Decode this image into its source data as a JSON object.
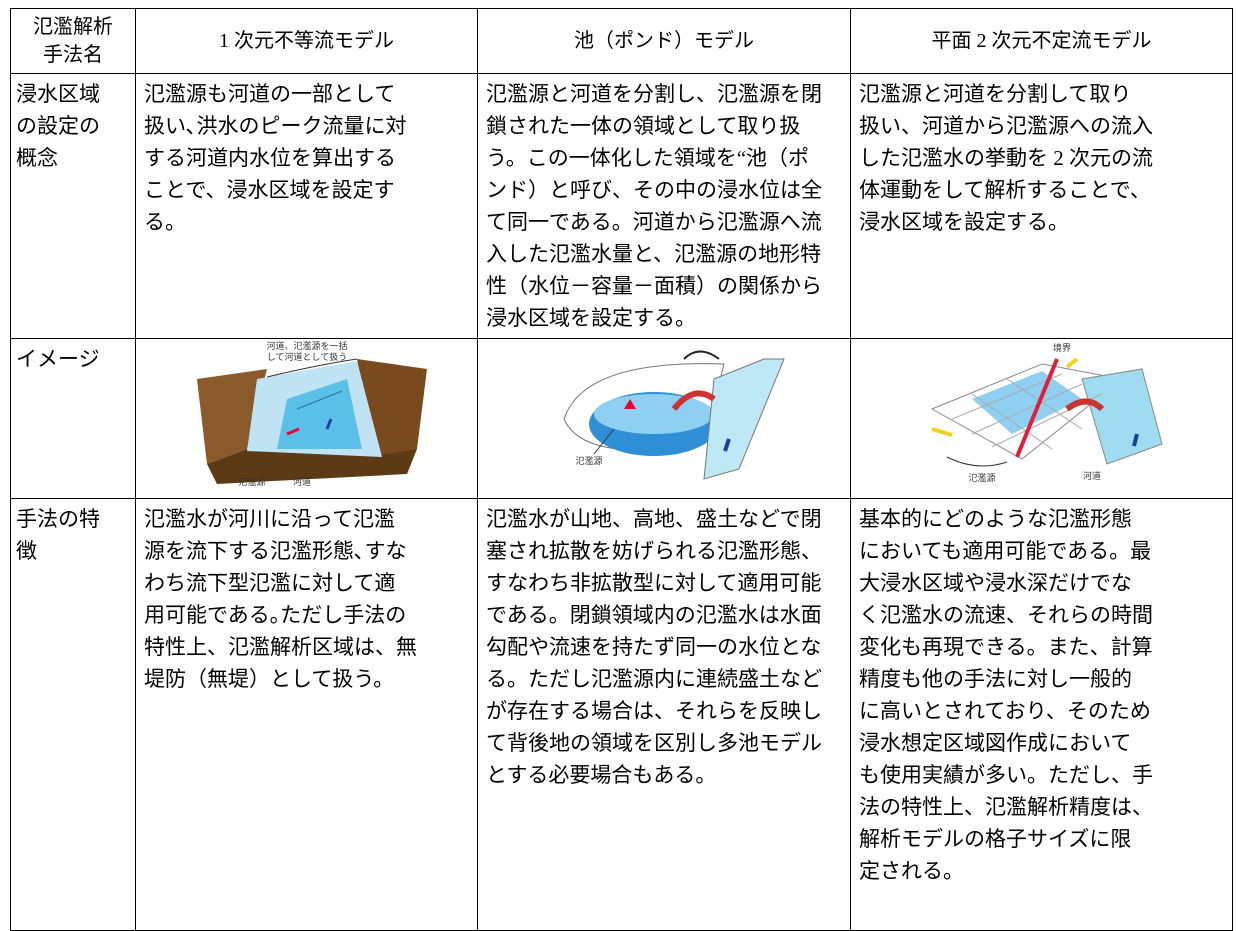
{
  "table": {
    "header": [
      [
        "氾濫解析",
        "手法名"
      ],
      [
        "1 次元不等流モデル"
      ],
      [
        "池（ポンド）モデル"
      ],
      [
        "平面 2 次元不定流モデル"
      ]
    ],
    "rows": [
      {
        "label": [
          "浸水区域",
          "の設定の",
          "概念"
        ],
        "cells": [
          [
            "氾濫源も河道の一部として",
            "扱い､洪水のピーク流量に対",
            "する河道内水位を算出する",
            "ことで、浸水区域を設定す",
            "る。"
          ],
          [
            "氾濫源と河道を分割し、氾濫源を閉",
            "鎖された一体の領域として取り扱",
            "う。この一体化した領域を“池（ポ",
            "ンド）と呼び、その中の浸水位は全",
            "て同一である。河道から氾濫源へ流",
            "入した氾濫水量と、氾濫源の地形特",
            "性（水位－容量－面積）の関係から",
            "浸水区域を設定する。"
          ],
          [
            "氾濫源と河道を分割して取り",
            "扱い、河道から氾濫源への流入",
            "した氾濫水の挙動を 2 次元の流",
            "体運動をして解析することで、",
            "浸水区域を設定する。"
          ]
        ]
      },
      {
        "label": [
          "イメージ"
        ],
        "images": [
          {
            "labels": [
              "河道、氾濫源を一括",
              "して河道として扱う",
              "氾濫源",
              "河道"
            ]
          },
          {
            "labels": [
              "氾濫源"
            ]
          },
          {
            "labels": [
              "境界",
              "氾濫源",
              "河道"
            ]
          }
        ]
      },
      {
        "label": [
          "手法の特",
          "徴"
        ],
        "cells": [
          [
            "氾濫水が河川に沿って氾濫",
            "源を流下する氾濫形態､すな",
            "わち流下型氾濫に対して適",
            "用可能である｡ただし手法の",
            "特性上、氾濫解析区域は、無",
            "堤防（無堤）として扱う。"
          ],
          [
            "氾濫水が山地、高地、盛土などで閉",
            "塞され拡散を妨げられる氾濫形態、",
            "すなわち非拡散型に対して適用可能",
            "である。閉鎖領域内の氾濫水は水面",
            "勾配や流速を持たず同一の水位とな",
            "る。ただし氾濫源内に連続盛土など",
            "が存在する場合は、それらを反映し",
            "て背後地の領域を区別し多池モデル",
            "とする必要場合もある。"
          ],
          [
            "基本的にどのような氾濫形態",
            "においても適用可能である。最",
            "大浸水区域や浸水深だけでな",
            "く氾濫水の流速、それらの時間",
            "変化も再現できる。また、計算",
            "精度も他の手法に対し一般的",
            "に高いとされており、そのため",
            "浸水想定区域図作成において",
            "も使用実績が多い。ただし、手",
            "法の特性上、氾濫解析精度は、",
            "解析モデルの格子サイズに限",
            "定される。"
          ]
        ]
      }
    ]
  }
}
